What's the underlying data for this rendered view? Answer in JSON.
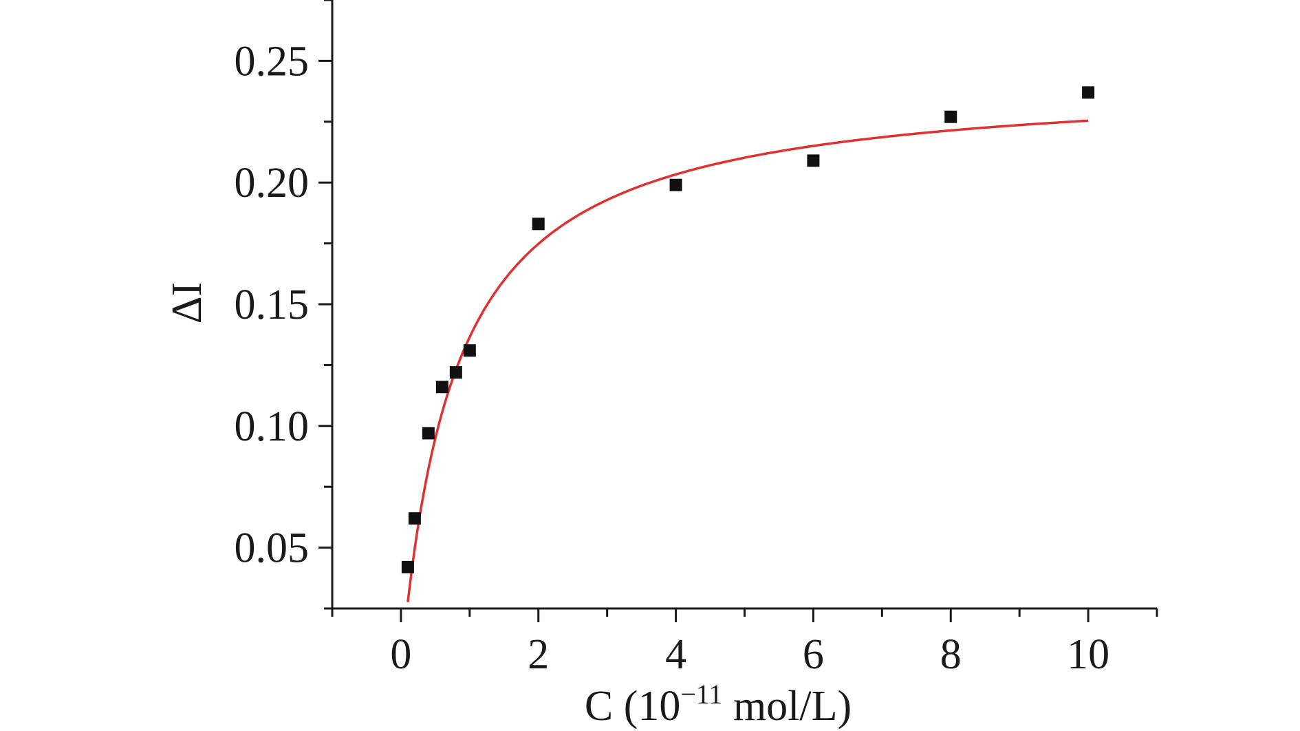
{
  "chart_data": {
    "type": "scatter",
    "xlabel_parts": {
      "main": "C (10",
      "sup": "−11",
      "unit": " mol/L)"
    },
    "ylabel": "ΔI",
    "xlim": [
      -1,
      11
    ],
    "ylim": [
      0.025,
      0.275
    ],
    "x_ticks": [
      0,
      2,
      4,
      6,
      8,
      10
    ],
    "x_tick_labels": [
      "0",
      "2",
      "4",
      "6",
      "8",
      "10"
    ],
    "x_minor_ticks": [
      -1,
      1,
      3,
      5,
      7,
      9,
      11
    ],
    "y_ticks": [
      0.05,
      0.1,
      0.15,
      0.2,
      0.25
    ],
    "y_tick_labels": [
      "0.05",
      "0.10",
      "0.15",
      "0.20",
      "0.25"
    ],
    "y_minor_ticks": [
      0.025,
      0.075,
      0.125,
      0.175,
      0.225,
      0.275
    ],
    "grid": false,
    "series": [
      {
        "kind": "scatter",
        "marker": "square",
        "color": "#111111",
        "x": [
          0.1,
          0.2,
          0.4,
          0.6,
          0.8,
          1.0,
          2.0,
          4.0,
          6.0,
          8.0,
          10.0
        ],
        "y": [
          0.042,
          0.062,
          0.097,
          0.116,
          0.122,
          0.131,
          0.183,
          0.199,
          0.209,
          0.227,
          0.237
        ]
      },
      {
        "kind": "line",
        "color": "#e03030",
        "model": "hyperbolic",
        "params": {
          "ymax": 0.243,
          "k": 0.78
        },
        "x_range": [
          0.1,
          10.0
        ]
      }
    ]
  }
}
